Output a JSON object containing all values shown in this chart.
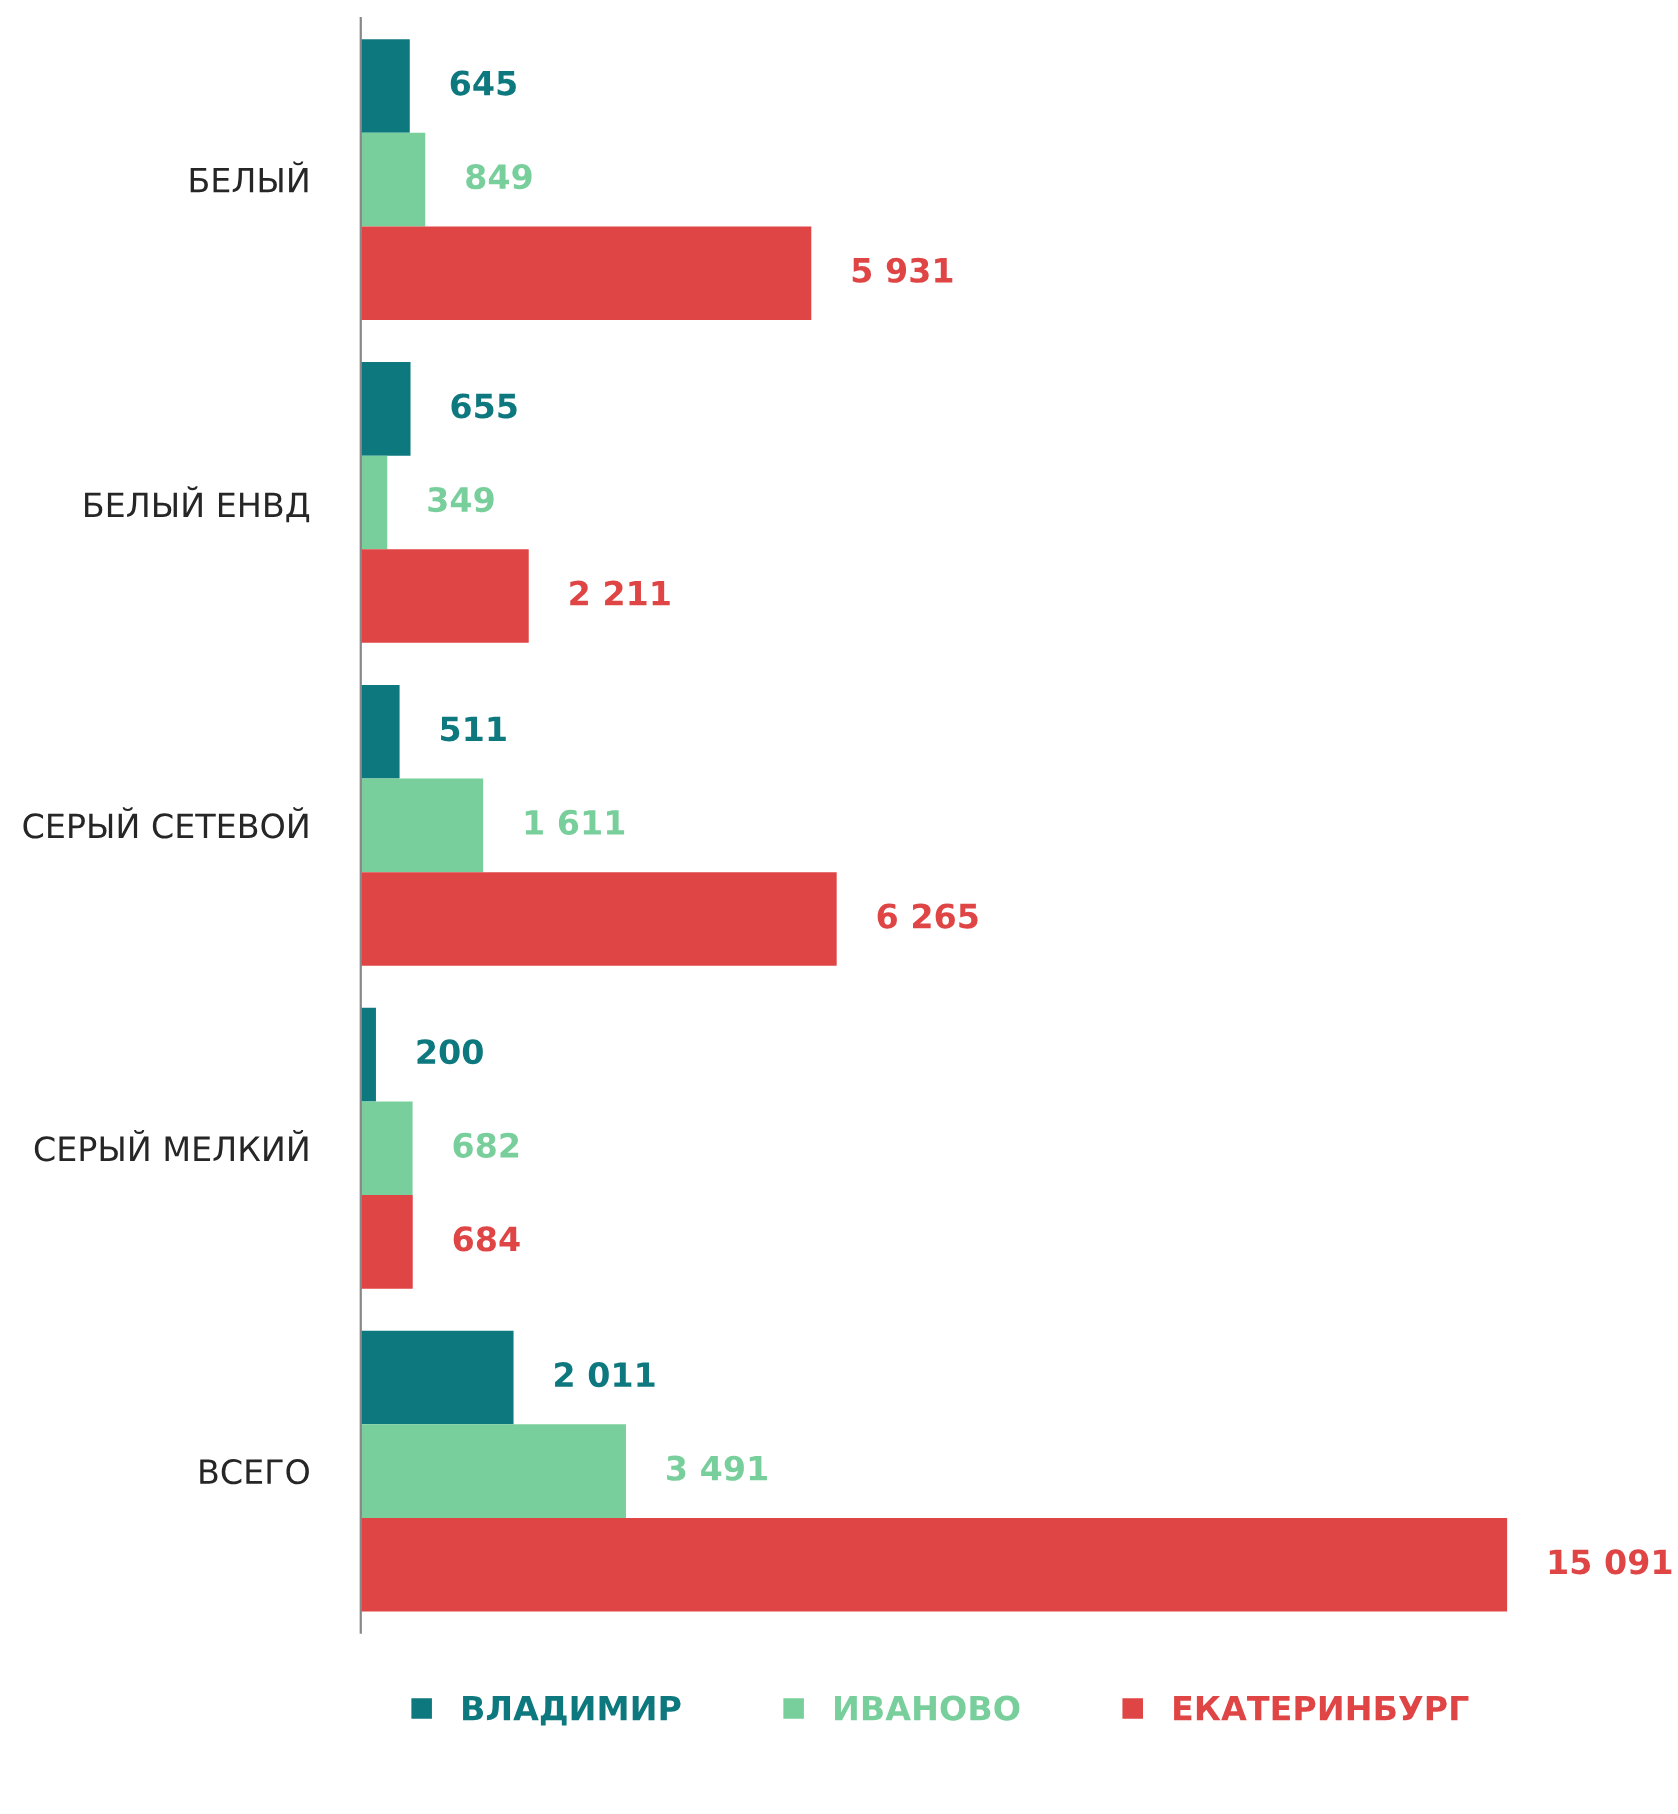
{
  "chart_data": {
    "type": "bar",
    "orientation": "horizontal",
    "categories": [
      "БЕЛЫЙ",
      "БЕЛЫЙ ЕНВД",
      "СЕРЫЙ СЕТЕВОЙ",
      "СЕРЫЙ МЕЛКИЙ",
      "ВСЕГО"
    ],
    "series": [
      {
        "name": "ВЛАДИМИР",
        "color": "#0e787f",
        "values": [
          645,
          655,
          511,
          200,
          2011
        ],
        "value_labels": [
          "645",
          "655",
          "511",
          "200",
          "2 011"
        ]
      },
      {
        "name": "ИВАНОВО",
        "color": "#78cf9b",
        "values": [
          849,
          349,
          1611,
          682,
          3491
        ],
        "value_labels": [
          "849",
          "349",
          "1 611",
          "682",
          "3 491"
        ]
      },
      {
        "name": "ЕКАТЕРИНБУРГ",
        "color": "#e04545",
        "values": [
          5931,
          2211,
          6265,
          684,
          15091
        ],
        "value_labels": [
          "5 931",
          "2 211",
          "6 265",
          "684",
          "15 091"
        ]
      }
    ],
    "legend": "bottom",
    "grid": false
  }
}
